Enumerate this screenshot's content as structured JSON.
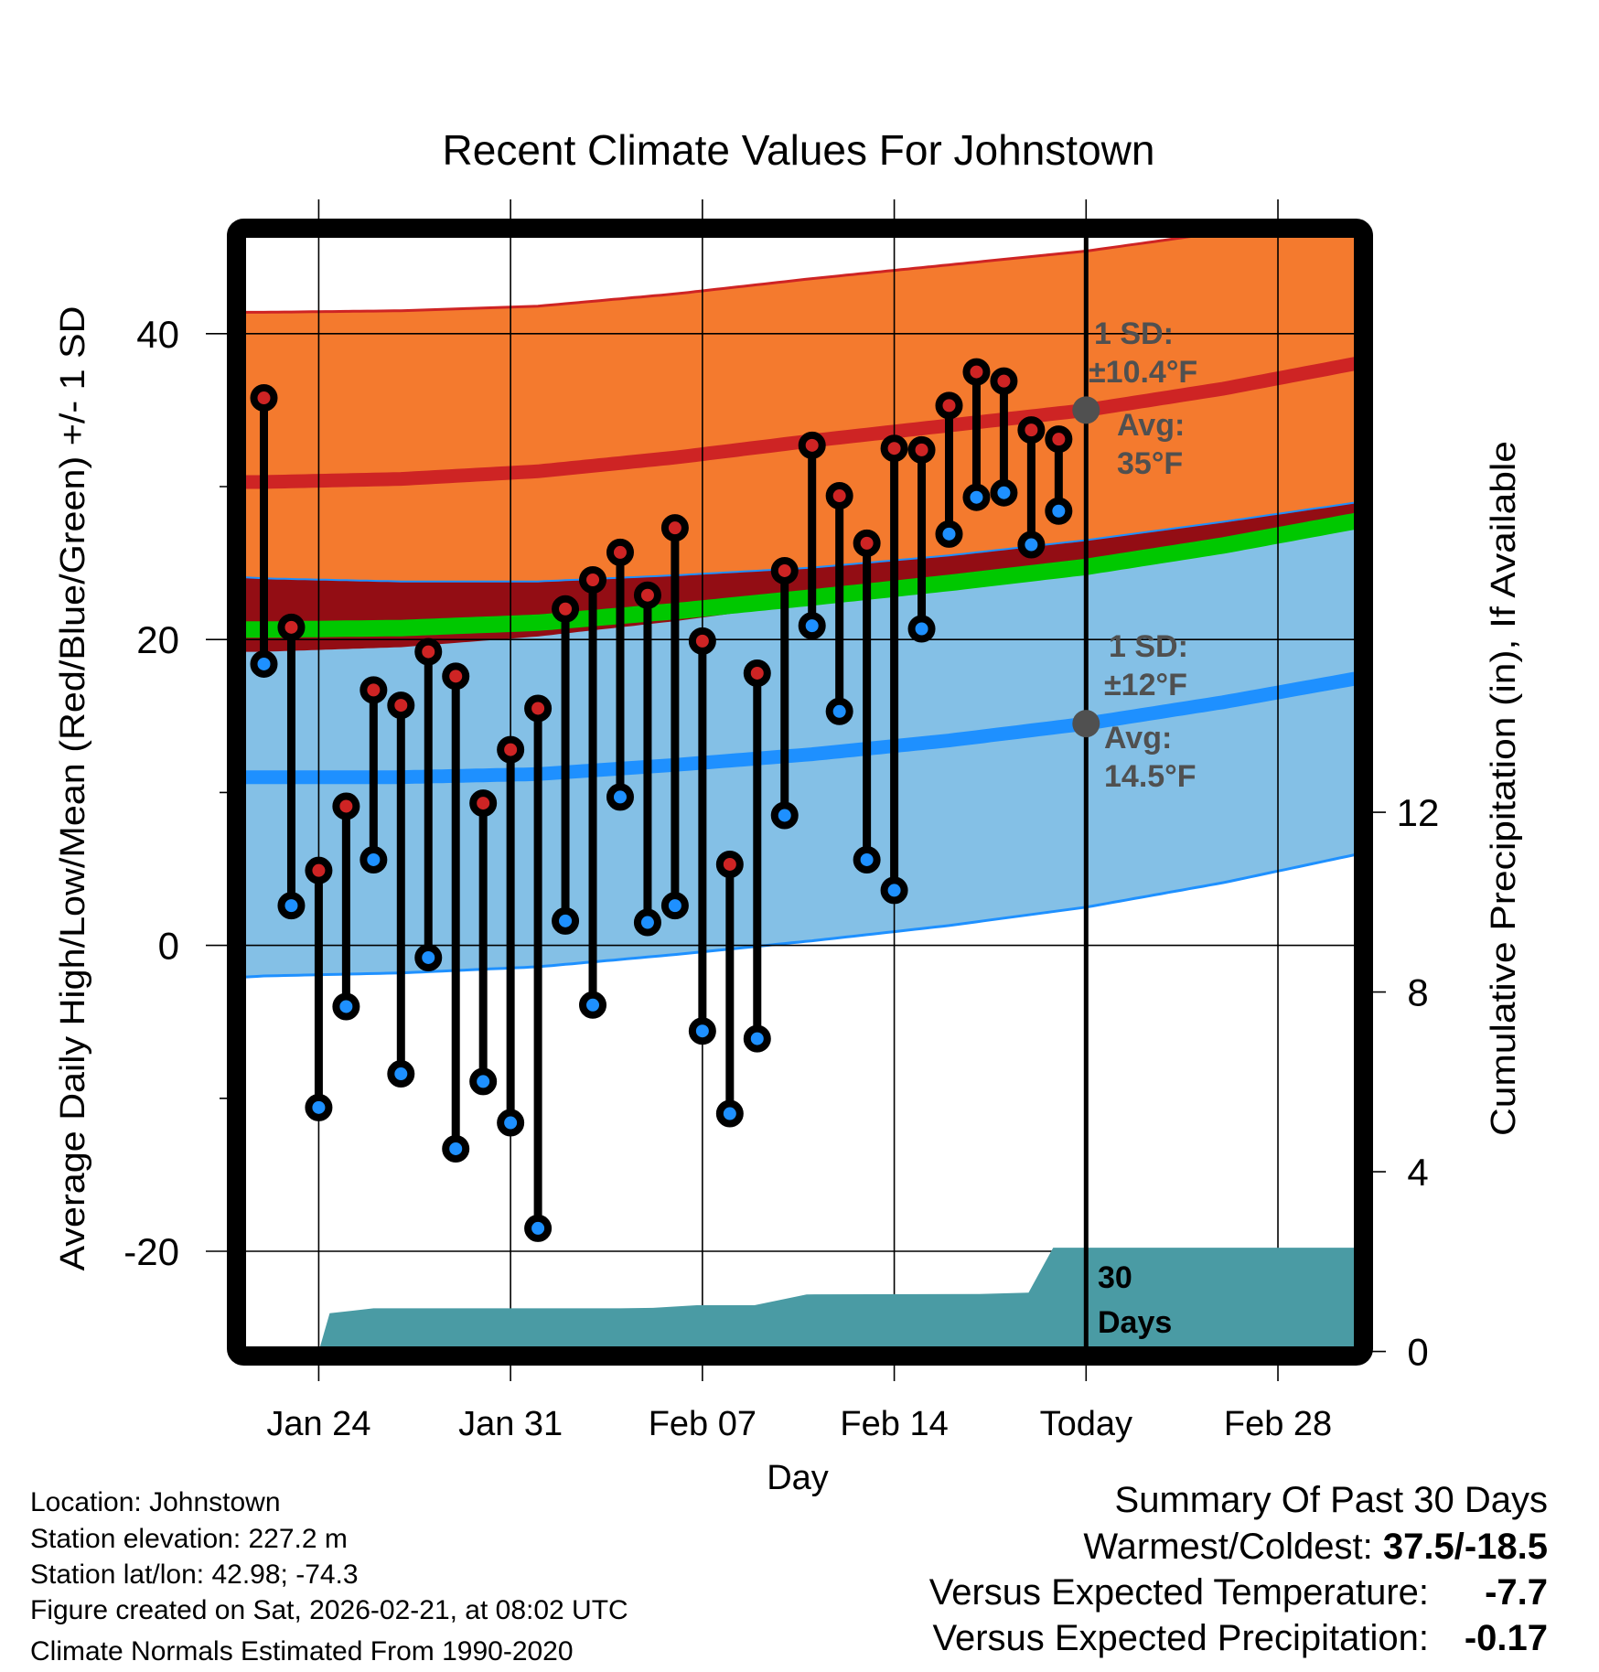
{
  "chart_data": {
    "type": "line",
    "title": "Recent Climate Values For Johnstown",
    "xlabel": "Day",
    "ylabel": "Average Daily High/Low/Mean (Red/Blue/Green) +/- 1 SD",
    "y2label": "Cumulative Precipitation (in), If Available",
    "ylim": [
      -26.2,
      46.3
    ],
    "y_ticks": [
      -20,
      0,
      20,
      40
    ],
    "y_minor_ticks": [
      -10,
      10,
      30
    ],
    "y2lim": [
      0,
      12
    ],
    "y2_ticks": [
      0,
      4,
      8,
      12
    ],
    "x_ticks": [
      {
        "day_index": 2,
        "label": "Jan 24"
      },
      {
        "day_index": 9,
        "label": "Jan 31"
      },
      {
        "day_index": 16,
        "label": "Feb 07"
      },
      {
        "day_index": 23,
        "label": "Feb 14"
      },
      {
        "day_index": 30,
        "label": "Today"
      },
      {
        "day_index": 37,
        "label": "Feb 28"
      }
    ],
    "x_range_day_index": [
      -0.63,
      39.45
    ],
    "today_day_index": 30,
    "grid": true,
    "daily": {
      "dates": [
        "Jan 22",
        "Jan 23",
        "Jan 24",
        "Jan 25",
        "Jan 26",
        "Jan 27",
        "Jan 28",
        "Jan 29",
        "Jan 30",
        "Jan 31",
        "Feb 01",
        "Feb 02",
        "Feb 03",
        "Feb 04",
        "Feb 05",
        "Feb 06",
        "Feb 07",
        "Feb 08",
        "Feb 09",
        "Feb 10",
        "Feb 11",
        "Feb 12",
        "Feb 13",
        "Feb 14",
        "Feb 15",
        "Feb 16",
        "Feb 17",
        "Feb 18",
        "Feb 19",
        "Feb 20"
      ],
      "high": [
        35.8,
        20.8,
        4.9,
        9.1,
        16.7,
        15.7,
        19.2,
        17.6,
        9.3,
        12.8,
        15.5,
        22.0,
        23.9,
        25.7,
        22.9,
        27.3,
        19.9,
        5.3,
        17.8,
        24.5,
        32.7,
        29.4,
        26.3,
        32.5,
        32.4,
        35.3,
        37.5,
        36.9,
        33.7,
        33.1
      ],
      "low": [
        18.4,
        2.6,
        -10.6,
        -4.0,
        5.6,
        -8.4,
        -0.8,
        -13.3,
        -8.9,
        -11.6,
        -18.5,
        1.6,
        -3.9,
        9.7,
        1.5,
        2.6,
        -5.6,
        -11.0,
        -6.1,
        8.5,
        20.9,
        15.3,
        5.6,
        3.6,
        20.7,
        26.9,
        29.3,
        29.6,
        26.2,
        28.4
      ]
    },
    "normals": {
      "day_index": [
        -1,
        0,
        5,
        10,
        15,
        20,
        25,
        30,
        35,
        40
      ],
      "avg_high": [
        30.3,
        30.3,
        30.5,
        31.0,
        31.9,
        33.0,
        34.0,
        35.0,
        36.4,
        38.1
      ],
      "sd_high": [
        11.1,
        11.1,
        11.0,
        10.8,
        10.7,
        10.6,
        10.5,
        10.4,
        10.25,
        10.1
      ],
      "avg_low": [
        11.0,
        11.0,
        11.0,
        11.2,
        11.8,
        12.5,
        13.4,
        14.5,
        15.9,
        17.5
      ],
      "sd_low": [
        13.1,
        13.0,
        12.8,
        12.6,
        12.4,
        12.2,
        12.1,
        12.0,
        11.8,
        11.5
      ]
    },
    "precip_cumulative": {
      "day_index": [
        2,
        2.4,
        4,
        13,
        14.2,
        15.8,
        17.9,
        19.8,
        26.1,
        27.9,
        28.8,
        39.5
      ],
      "inches": [
        0.0,
        0.85,
        0.96,
        0.96,
        0.97,
        1.03,
        1.03,
        1.27,
        1.28,
        1.31,
        2.31,
        2.31
      ]
    },
    "annotations": {
      "high_sd": "1 SD:",
      "high_sd_value": "±10.4°F",
      "high_avg": "Avg:",
      "high_avg_value": "35°F",
      "today_avg_high": 35,
      "low_sd": "1 SD:",
      "low_sd_value": "±12°F",
      "low_avg": "Avg:",
      "low_avg_value": "14.5°F",
      "today_avg_low": 14.5,
      "precip_days_1": "30",
      "precip_days_2": "Days"
    },
    "colors": {
      "high_band": "#F47A2E",
      "high_line": "#CE2424",
      "overlap_band": "#930D14",
      "mean_line": "#00C800",
      "low_band": "#84C0E6",
      "low_line": "#1E90FF",
      "precip": "#4A9BA4",
      "annotation": "#505050",
      "high_dot": "#CE2424",
      "low_dot": "#1E90FF"
    }
  },
  "footer": {
    "location": "Location: Johnstown",
    "elevation": "Station elevation: 227.2 m",
    "latlon": "Station lat/lon: 42.98; -74.3",
    "created": "Figure created on Sat, 2026-02-21, at 08:02 UTC",
    "normals": "Climate Normals Estimated From 1990-2020"
  },
  "summary": {
    "title": "Summary Of Past 30 Days",
    "warmest_coldest_label": "Warmest/Coldest: ",
    "warmest_coldest_value": "37.5/-18.5",
    "temp_label": "Versus Expected Temperature:",
    "temp_value": "-7.7",
    "temp_color": "#2B8FF0",
    "precip_label": "Versus Expected Precipitation:",
    "precip_value": "-0.17",
    "precip_color": "#A0522D"
  }
}
